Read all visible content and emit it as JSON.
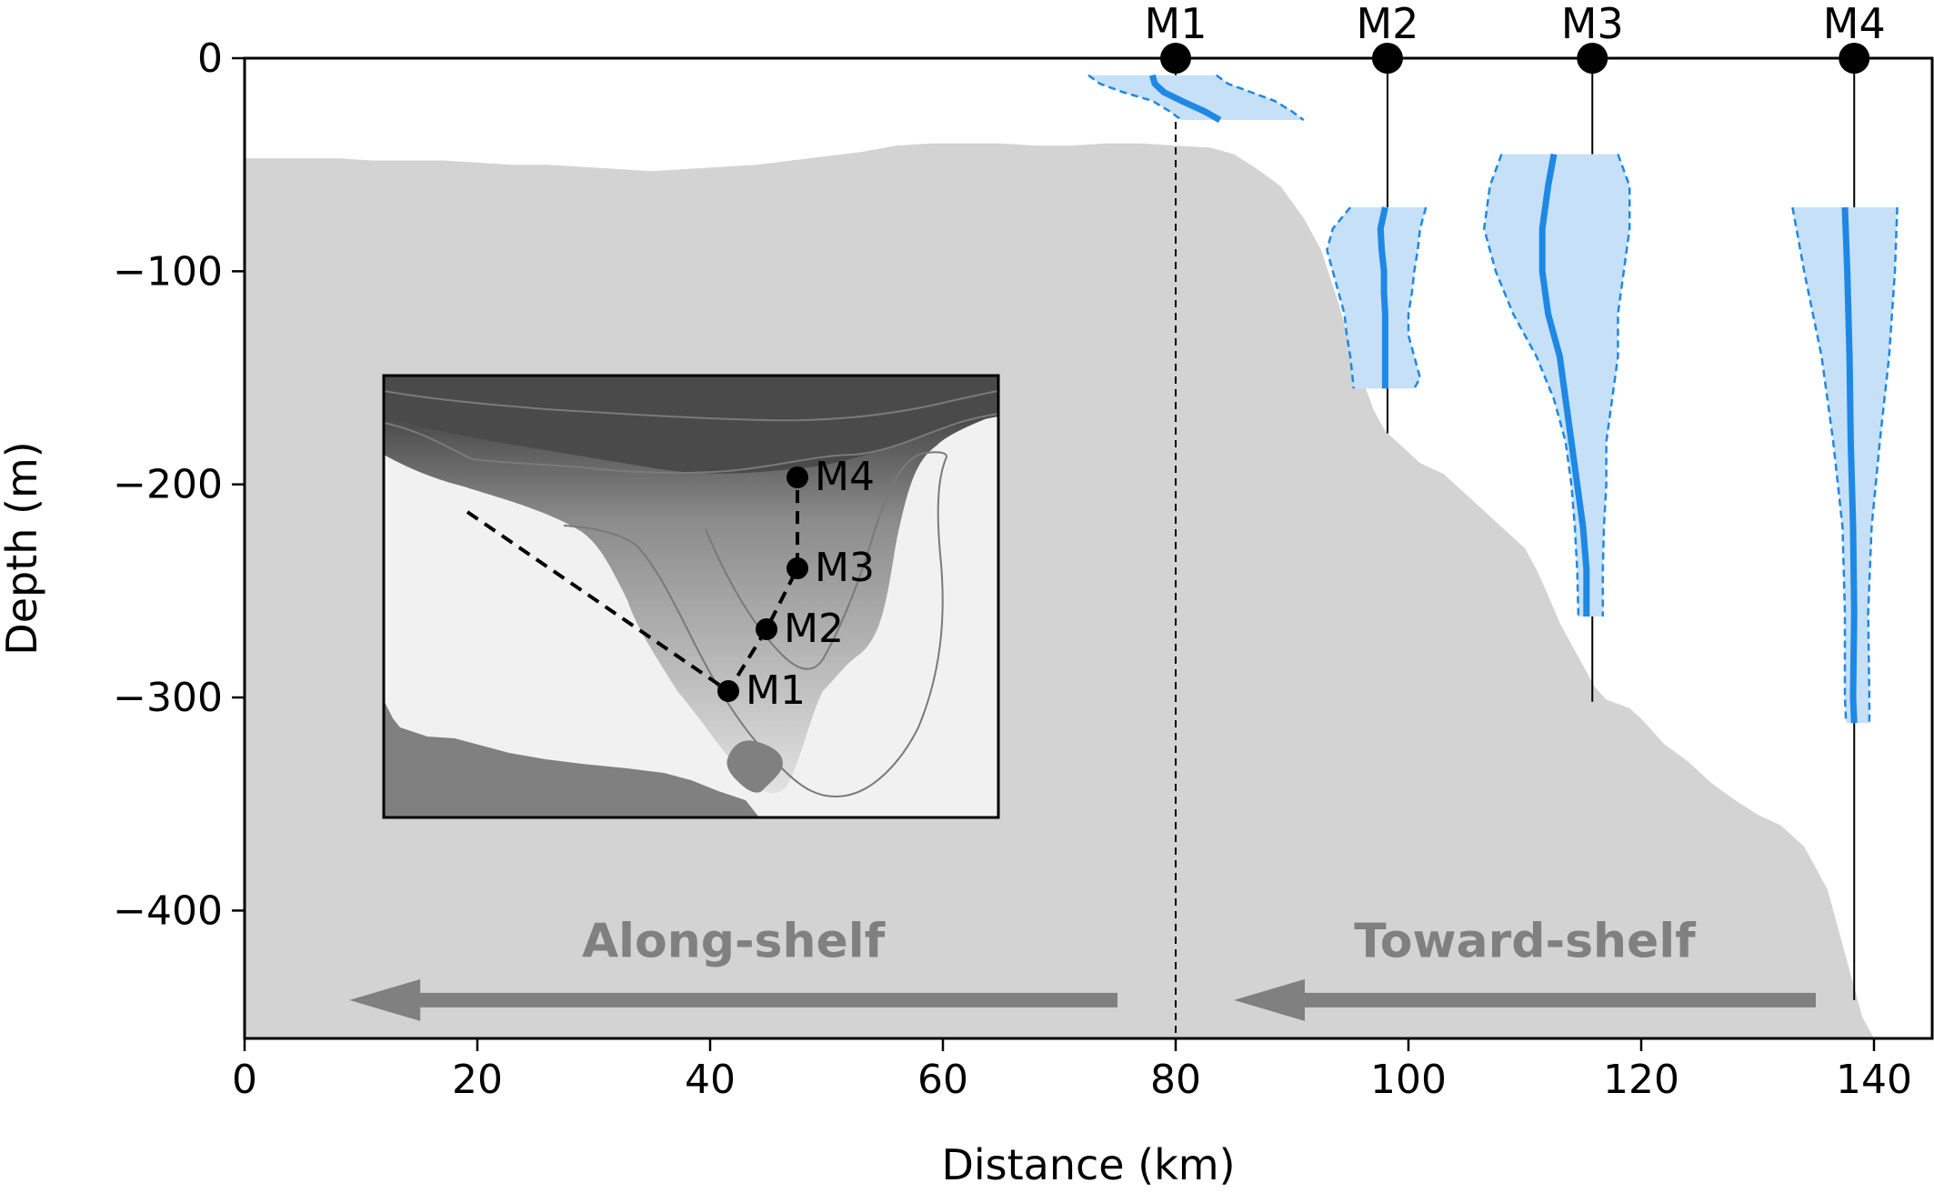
{
  "chart_data": {
    "type": "line",
    "xlabel": "Distance (km)",
    "ylabel": "Depth (m)",
    "xlim": [
      0,
      145
    ],
    "ylim": [
      -460,
      0
    ],
    "xticks": [
      0,
      20,
      40,
      60,
      80,
      100,
      120,
      140
    ],
    "yticks": [
      0,
      -100,
      -200,
      -300,
      -400
    ],
    "xtick_labels": [
      "0",
      "20",
      "40",
      "60",
      "80",
      "100",
      "120",
      "140"
    ],
    "ytick_labels": [
      "0",
      "−100",
      "−200",
      "−300",
      "−400"
    ],
    "grid": false,
    "colors": {
      "bathymetry": "#d3d3d3",
      "profile_line": "#1e88e5",
      "profile_envelope": "#c6e0f7",
      "arrow": "#808080",
      "mooring": "#000000"
    },
    "moorings": [
      {
        "label": "M1",
        "x": 80,
        "bottom": -460,
        "dashed": true
      },
      {
        "label": "M2",
        "x": 98.2,
        "bottom": -176,
        "dashed": false
      },
      {
        "label": "M3",
        "x": 115.8,
        "bottom": -302,
        "dashed": false
      },
      {
        "label": "M4",
        "x": 138.3,
        "bottom": -442,
        "dashed": false
      }
    ],
    "bathymetry": {
      "x": [
        0,
        2,
        5,
        8,
        11,
        14,
        17,
        20,
        23,
        26,
        29,
        32,
        35,
        38,
        41,
        44,
        47,
        50,
        53,
        56,
        59,
        62,
        65,
        68,
        71,
        74,
        77,
        80,
        83,
        85,
        87,
        89,
        91,
        92.5,
        94,
        95,
        96,
        97,
        98,
        99,
        100,
        101,
        103,
        105,
        107,
        109,
        110,
        111,
        112,
        113,
        114,
        115,
        116,
        117,
        118,
        119,
        120,
        121,
        122,
        124,
        126,
        128,
        130,
        132,
        134,
        136,
        137,
        138,
        139,
        140
      ],
      "y": [
        -47,
        -47,
        -47,
        -47,
        -48,
        -48,
        -48,
        -49,
        -50,
        -50,
        -51,
        -52,
        -53,
        -52,
        -51,
        -50,
        -48,
        -46,
        -44,
        -41,
        -40,
        -40,
        -40,
        -41,
        -41,
        -40,
        -40,
        -41,
        -42,
        -45,
        -52,
        -60,
        -75,
        -90,
        -115,
        -135,
        -150,
        -165,
        -175,
        -180,
        -185,
        -190,
        -195,
        -205,
        -215,
        -225,
        -230,
        -240,
        -252,
        -265,
        -275,
        -285,
        -295,
        -301,
        -303,
        -305,
        -310,
        -316,
        -322,
        -330,
        -340,
        -348,
        -355,
        -360,
        -370,
        -390,
        -410,
        -430,
        -450,
        -460
      ]
    },
    "series": [
      {
        "name": "M1",
        "ticks": [],
        "depth": [
          -8,
          -12,
          -16,
          -20,
          -25,
          -29
        ],
        "mean": [
          78.0,
          78.2,
          79.0,
          80.5,
          82.5,
          83.8
        ],
        "lower": [
          72.5,
          73.5,
          75.5,
          78.0,
          79.5,
          80.5
        ],
        "upper": [
          83.5,
          84.5,
          86.5,
          88.5,
          90.0,
          91.0
        ]
      },
      {
        "name": "M2",
        "depth": [
          -70,
          -80,
          -90,
          -100,
          -110,
          -120,
          -130,
          -140,
          -150,
          -155
        ],
        "mean": [
          98.0,
          97.6,
          97.7,
          97.9,
          97.9,
          98.0,
          98.0,
          98.0,
          98.0,
          98.0
        ],
        "lower": [
          95.0,
          93.5,
          93.0,
          93.5,
          94.0,
          94.5,
          94.7,
          95.0,
          95.2,
          95.3
        ],
        "upper": [
          101.5,
          101.0,
          100.8,
          100.5,
          100.3,
          100.0,
          100.0,
          100.5,
          101.0,
          100.5
        ]
      },
      {
        "name": "M3",
        "depth": [
          -45,
          -60,
          -80,
          -100,
          -120,
          -140,
          -160,
          -180,
          -200,
          -220,
          -240,
          -262
        ],
        "mean": [
          112.5,
          112.0,
          111.5,
          111.5,
          112.0,
          113.0,
          113.5,
          114.0,
          114.5,
          115.0,
          115.3,
          115.3
        ],
        "lower": [
          108.0,
          107.0,
          106.5,
          107.5,
          109.0,
          111.0,
          112.5,
          113.5,
          114.0,
          114.3,
          114.5,
          114.6
        ],
        "upper": [
          118.0,
          119.0,
          119.0,
          118.5,
          118.0,
          118.0,
          117.5,
          117.0,
          117.0,
          116.8,
          116.7,
          116.7
        ]
      },
      {
        "name": "M4",
        "depth": [
          -70,
          -100,
          -140,
          -180,
          -220,
          -260,
          -300,
          -312
        ],
        "mean": [
          137.5,
          137.7,
          137.9,
          138.0,
          138.2,
          138.3,
          138.2,
          138.3
        ],
        "lower": [
          133.0,
          134.0,
          135.5,
          136.5,
          137.3,
          137.5,
          137.5,
          137.6
        ],
        "upper": [
          142.0,
          141.8,
          141.3,
          140.5,
          139.8,
          139.5,
          139.6,
          139.6
        ]
      }
    ],
    "annotations": [
      {
        "id": "along",
        "text": "Along-shelf",
        "arrow_from_km": 75,
        "arrow_to_km": 9,
        "arrow_depth": -442,
        "text_depth": -415
      },
      {
        "id": "toward",
        "text": "Toward-shelf",
        "arrow_from_km": 135,
        "arrow_to_km": 85,
        "arrow_depth": -442,
        "text_depth": -415
      }
    ],
    "inset": {
      "labels": [
        "M1",
        "M2",
        "M3",
        "M4"
      ]
    }
  }
}
